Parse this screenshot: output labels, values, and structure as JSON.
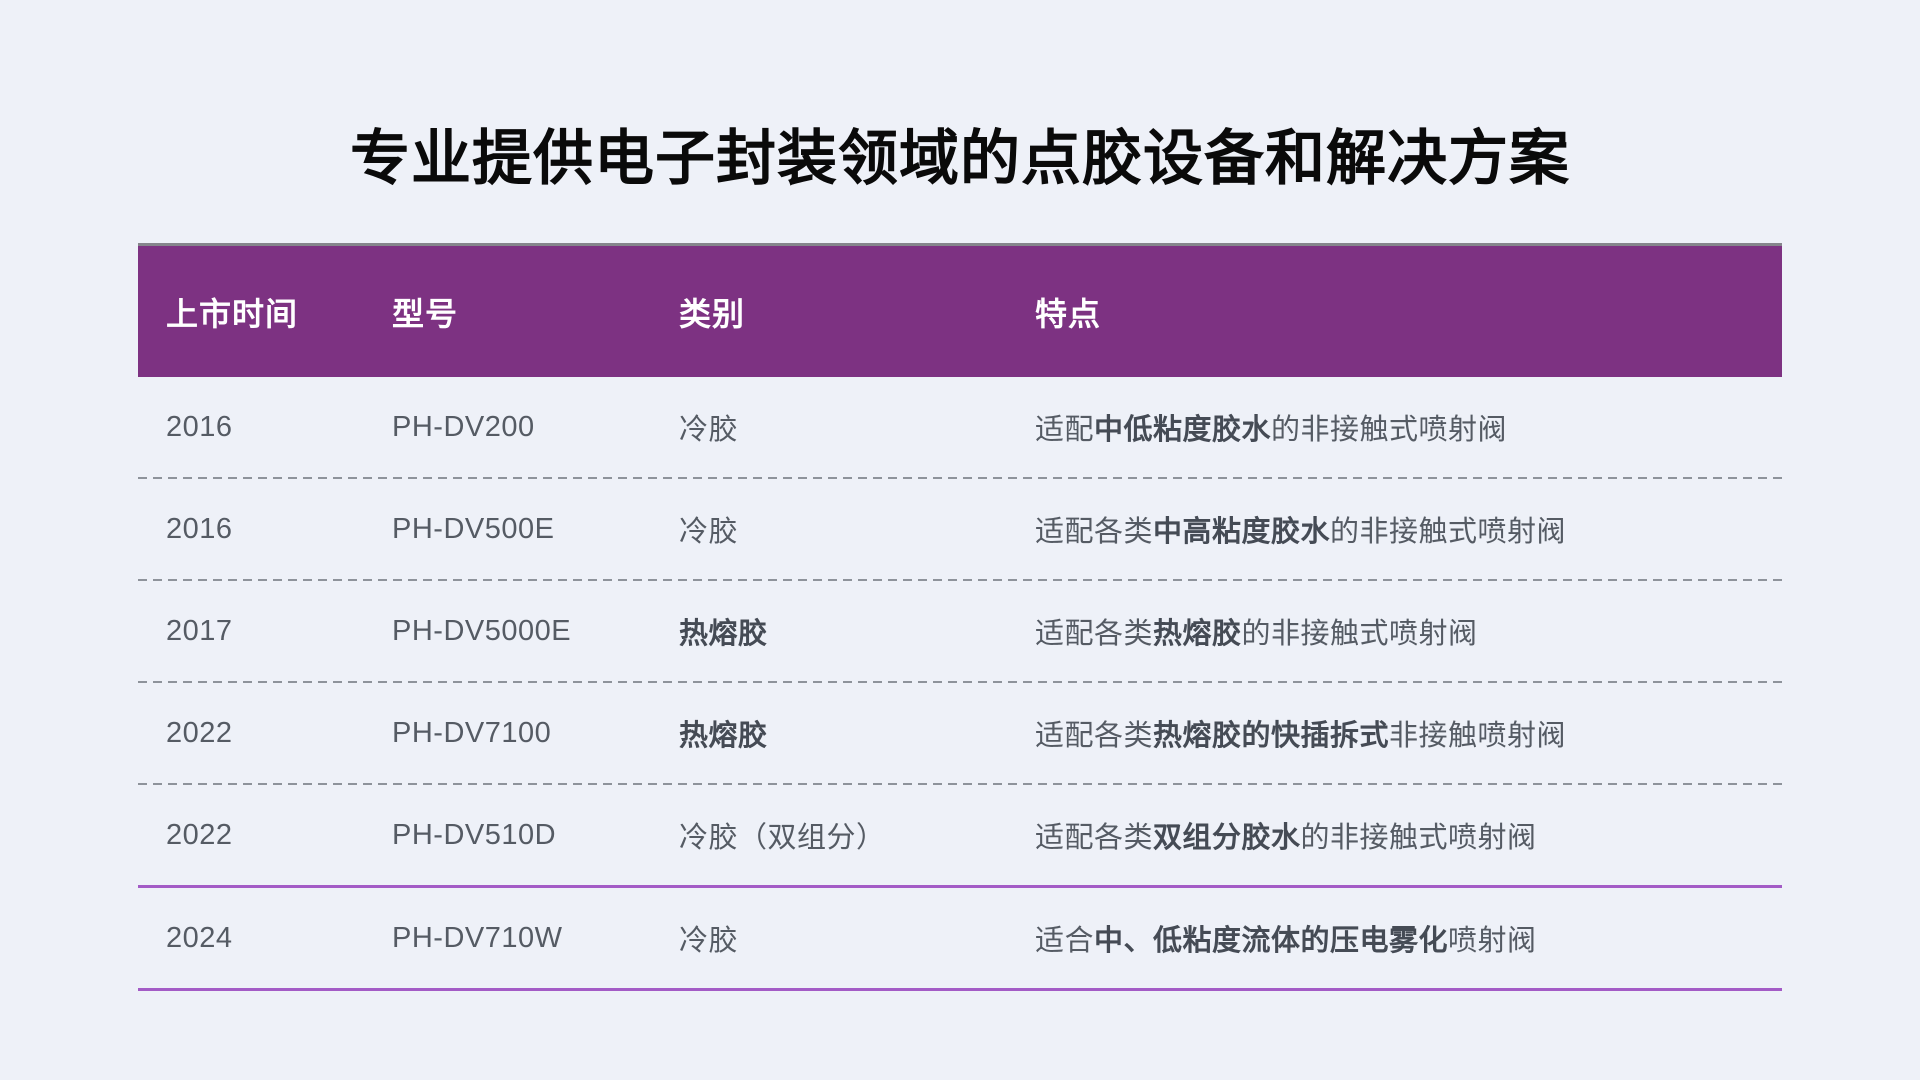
{
  "page": {
    "title": "专业提供电子封装领域的点胶设备和解决方案",
    "background_color": "#eef1f8"
  },
  "table": {
    "header_bg_color": "#7d3282",
    "accent_line_color": "#a35bc6",
    "columns": [
      "上市时间",
      "型号",
      "类别",
      "特点"
    ],
    "rows": [
      {
        "year": "2016",
        "model": "PH-DV200",
        "category": "冷胶",
        "feature": {
          "prefix": "适配",
          "bold": "中低粘度胶水",
          "suffix": "的非接触式喷射阀"
        }
      },
      {
        "year": "2016",
        "model": "PH-DV500E",
        "category": "冷胶",
        "feature": {
          "prefix": "适配各类",
          "bold": "中高粘度胶水",
          "suffix": "的非接触式喷射阀"
        }
      },
      {
        "year": "2017",
        "model": "PH-DV5000E",
        "category": "热熔胶",
        "feature": {
          "prefix": "适配各类",
          "bold": "热熔胶",
          "suffix": "的非接触式喷射阀"
        }
      },
      {
        "year": "2022",
        "model": "PH-DV7100",
        "category": "热熔胶",
        "feature": {
          "prefix": "适配各类",
          "bold": "热熔胶的快插拆式",
          "suffix": "非接触喷射阀"
        }
      },
      {
        "year": "2022",
        "model": "PH-DV510D",
        "category": "冷胶（双组分）",
        "feature": {
          "prefix": "适配各类",
          "bold": "双组分胶水",
          "suffix": "的非接触式喷射阀"
        }
      },
      {
        "year": "2024",
        "model": "PH-DV710W",
        "category": "冷胶",
        "feature": {
          "prefix": "适合",
          "bold": "中、低粘度流体的压电雾化",
          "suffix": "喷射阀"
        }
      }
    ]
  }
}
